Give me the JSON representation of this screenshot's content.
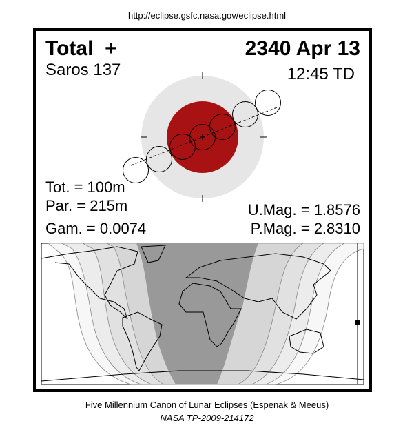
{
  "source_url": "http://eclipse.gsfc.nasa.gov/eclipse.html",
  "header": {
    "eclipse_type": "Total  +",
    "date": "2340 Apr 13",
    "saros": "Saros 137",
    "time": "12:45 TD"
  },
  "stats": {
    "total_duration": "Tot. = 100m",
    "partial_duration": "Par. = 215m",
    "gamma": "Gam. = 0.0074",
    "umbral_magnitude": "U.Mag. = 1.8576",
    "penumbral_magnitude": "P.Mag. = 2.8310"
  },
  "colors": {
    "umbra": "#a91212",
    "penumbra": "#e6e6e6",
    "map_total": "#999999",
    "map_partial_bands": [
      "#f7f7f7",
      "#ececec",
      "#e1e1e1",
      "#d6d6d6"
    ]
  },
  "footer": {
    "line1": "Five Millennium Canon of Lunar Eclipses (Espenak & Meeus)",
    "line2": "NASA TP-2009-214172"
  }
}
